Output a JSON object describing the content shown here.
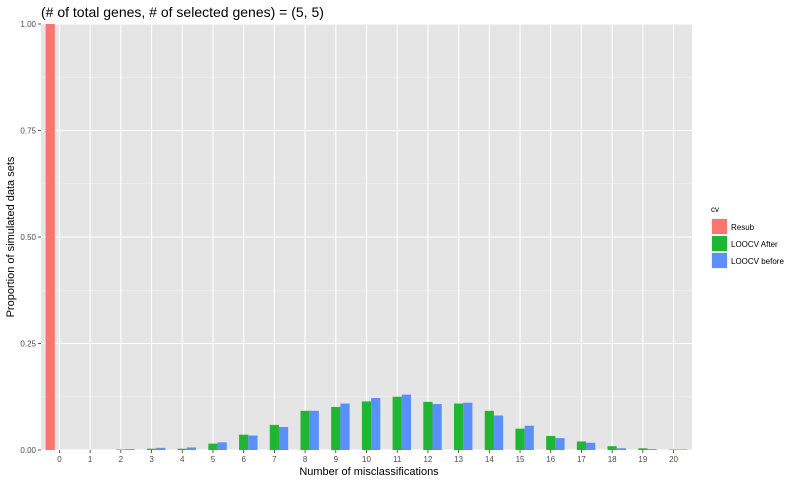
{
  "chart_data": {
    "type": "bar",
    "title": "(# of total genes, # of selected genes) = (5, 5)",
    "xlabel": "Number of misclassifications",
    "ylabel": "Proportion of simulated data sets",
    "categories": [
      "0",
      "1",
      "2",
      "3",
      "4",
      "5",
      "6",
      "7",
      "8",
      "9",
      "10",
      "11",
      "12",
      "13",
      "14",
      "15",
      "16",
      "17",
      "18",
      "19",
      "20"
    ],
    "ylim": [
      0,
      1
    ],
    "y_ticks": [
      "0.00",
      "0.25",
      "0.50",
      "0.75",
      "1.00"
    ],
    "y_tick_values": [
      0,
      0.25,
      0.5,
      0.75,
      1.0
    ],
    "grid": true,
    "legend": {
      "title": "cv",
      "placement": "right"
    },
    "series": [
      {
        "name": "Resub",
        "color": "#f8766d",
        "values": [
          1.0,
          0,
          0,
          0,
          0,
          0,
          0,
          0,
          0,
          0,
          0,
          0,
          0,
          0,
          0,
          0,
          0,
          0,
          0,
          0,
          0
        ]
      },
      {
        "name": "LOOCV After",
        "color": "#1fb633",
        "values": [
          0,
          0,
          0.001,
          0.003,
          0.003,
          0.015,
          0.036,
          0.059,
          0.092,
          0.101,
          0.114,
          0.125,
          0.113,
          0.109,
          0.092,
          0.05,
          0.033,
          0.02,
          0.009,
          0.004,
          0.001
        ]
      },
      {
        "name": "LOOCV before",
        "color": "#5b8ff9",
        "values": [
          0,
          0,
          0.002,
          0.005,
          0.006,
          0.018,
          0.034,
          0.054,
          0.092,
          0.109,
          0.122,
          0.13,
          0.108,
          0.111,
          0.081,
          0.057,
          0.028,
          0.017,
          0.004,
          0.002,
          0.001
        ]
      }
    ]
  }
}
